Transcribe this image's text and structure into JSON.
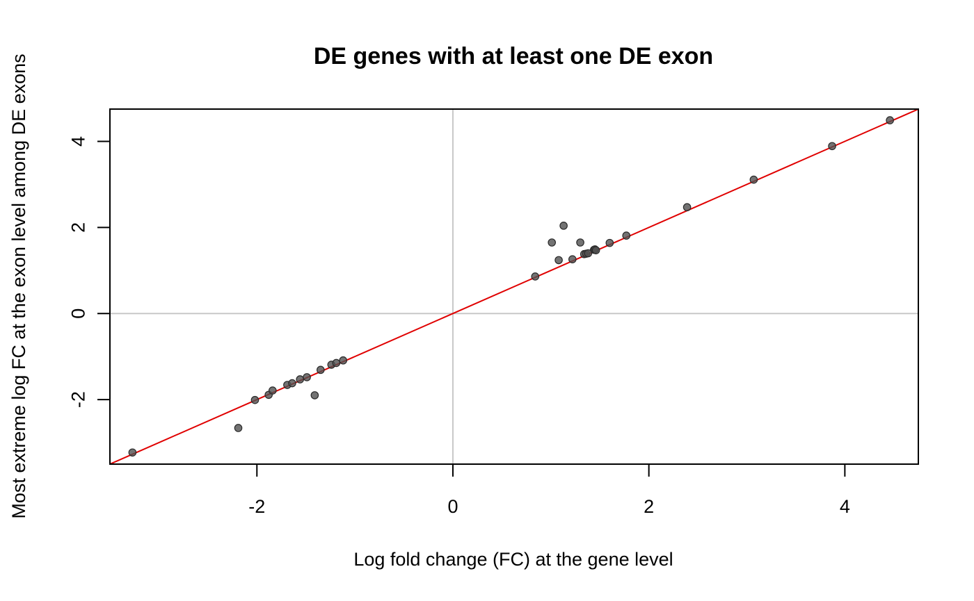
{
  "chart_data": {
    "type": "scatter",
    "title": "DE genes with at least one DE exon",
    "xlabel": "Log fold change (FC) at the gene level",
    "ylabel": "Most extreme log FC at the exon level among DE exons",
    "xlim": [
      -3.5,
      4.75
    ],
    "ylim": [
      -3.5,
      4.75
    ],
    "xticks": [
      -2,
      0,
      2,
      4
    ],
    "yticks": [
      -2,
      0,
      2,
      4
    ],
    "grid": false,
    "reference_lines": {
      "h": 0,
      "v": 0,
      "color": "#c8c8c8"
    },
    "abline": {
      "intercept": 0,
      "slope": 1,
      "color": "#e00000"
    },
    "point_color": "#505050",
    "points": [
      {
        "x": -3.27,
        "y": -3.23
      },
      {
        "x": -2.19,
        "y": -2.66
      },
      {
        "x": -2.02,
        "y": -2.01
      },
      {
        "x": -1.88,
        "y": -1.89
      },
      {
        "x": -1.84,
        "y": -1.79
      },
      {
        "x": -1.69,
        "y": -1.66
      },
      {
        "x": -1.64,
        "y": -1.62
      },
      {
        "x": -1.56,
        "y": -1.53
      },
      {
        "x": -1.49,
        "y": -1.48
      },
      {
        "x": -1.41,
        "y": -1.9
      },
      {
        "x": -1.35,
        "y": -1.31
      },
      {
        "x": -1.24,
        "y": -1.19
      },
      {
        "x": -1.19,
        "y": -1.15
      },
      {
        "x": -1.12,
        "y": -1.09
      },
      {
        "x": 0.84,
        "y": 0.86
      },
      {
        "x": 1.01,
        "y": 1.65
      },
      {
        "x": 1.08,
        "y": 1.24
      },
      {
        "x": 1.13,
        "y": 2.04
      },
      {
        "x": 1.22,
        "y": 1.26
      },
      {
        "x": 1.3,
        "y": 1.65
      },
      {
        "x": 1.34,
        "y": 1.38
      },
      {
        "x": 1.36,
        "y": 1.39
      },
      {
        "x": 1.38,
        "y": 1.4
      },
      {
        "x": 1.44,
        "y": 1.48
      },
      {
        "x": 1.45,
        "y": 1.49
      },
      {
        "x": 1.46,
        "y": 1.47
      },
      {
        "x": 1.6,
        "y": 1.64
      },
      {
        "x": 1.77,
        "y": 1.81
      },
      {
        "x": 2.39,
        "y": 2.47
      },
      {
        "x": 3.07,
        "y": 3.11
      },
      {
        "x": 3.87,
        "y": 3.89
      },
      {
        "x": 4.46,
        "y": 4.49
      }
    ]
  }
}
